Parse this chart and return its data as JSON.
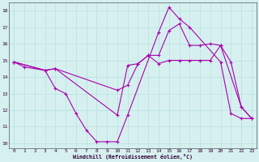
{
  "xlabel": "Windchill (Refroidissement éolien,°C)",
  "bg_color": "#d6f0f0",
  "line_color": "#aa00aa",
  "grid_color": "#b8e0e0",
  "ylim": [
    9.7,
    18.5
  ],
  "xlim": [
    -0.5,
    23.5
  ],
  "yticks": [
    10,
    11,
    12,
    13,
    14,
    15,
    16,
    17,
    18
  ],
  "xticks": [
    0,
    1,
    2,
    3,
    4,
    5,
    6,
    7,
    8,
    9,
    10,
    11,
    12,
    13,
    14,
    15,
    16,
    17,
    18,
    19,
    20,
    21,
    22,
    23
  ],
  "series": [
    {
      "x": [
        0,
        1,
        3,
        4,
        5,
        6,
        7,
        8,
        9,
        10,
        11,
        14,
        15,
        16,
        17,
        20,
        21,
        22,
        23
      ],
      "y": [
        14.9,
        14.6,
        14.4,
        13.3,
        13.0,
        11.8,
        10.8,
        10.1,
        10.1,
        10.1,
        11.7,
        16.7,
        18.2,
        17.5,
        17.0,
        14.9,
        11.8,
        11.5,
        11.5
      ]
    },
    {
      "x": [
        0,
        3,
        4,
        10,
        11,
        12,
        13,
        14,
        15,
        16,
        17,
        18,
        19,
        20,
        21,
        22,
        23
      ],
      "y": [
        14.9,
        14.4,
        14.5,
        13.2,
        13.5,
        14.8,
        15.3,
        15.3,
        16.8,
        17.2,
        15.9,
        15.9,
        16.0,
        15.9,
        14.9,
        12.2,
        11.5
      ]
    },
    {
      "x": [
        0,
        3,
        4,
        10,
        11,
        12,
        13,
        14,
        15,
        16,
        17,
        18,
        19,
        20,
        22,
        23
      ],
      "y": [
        14.9,
        14.4,
        14.5,
        11.7,
        14.7,
        14.8,
        15.3,
        14.8,
        15.0,
        15.0,
        15.0,
        15.0,
        15.0,
        15.9,
        12.2,
        11.5
      ]
    }
  ]
}
